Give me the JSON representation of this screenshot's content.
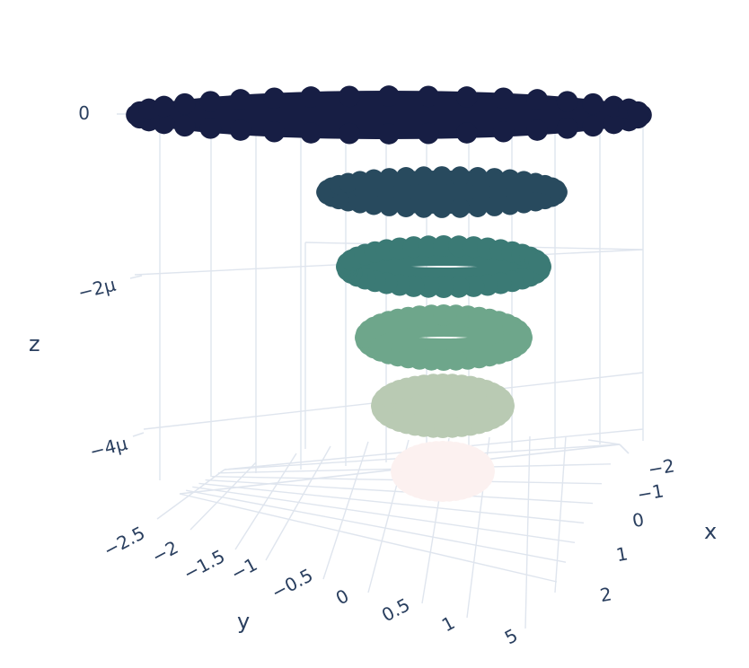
{
  "chart_data": {
    "type": "scatter3d",
    "title": "",
    "axes": {
      "x": {
        "title": "x",
        "ticks": [
          "−2",
          "−1",
          "0",
          "1",
          "2"
        ]
      },
      "y": {
        "title": "y",
        "ticks": [
          "−2.5",
          "−2",
          "−1.5",
          "−1",
          "−0.5",
          "0",
          "0.5",
          "1",
          "5"
        ]
      },
      "z": {
        "title": "z",
        "ticks": [
          "0",
          "−2μ",
          "−4μ"
        ]
      }
    },
    "grid": true,
    "legend": "none",
    "rings": [
      {
        "z": 0,
        "outer_radius": 2.6,
        "hole": false,
        "color": "#171e44"
      },
      {
        "z": -8e-07,
        "outer_radius": 1.3,
        "hole": false,
        "color": "#284a5e"
      },
      {
        "z": -1.6e-06,
        "outer_radius": 1.05,
        "hole": true,
        "color": "#3b7a75"
      },
      {
        "z": -2.4e-06,
        "outer_radius": 0.9,
        "hole": true,
        "color": "#6ea68b"
      },
      {
        "z": -3.2e-06,
        "outer_radius": 0.7,
        "hole": true,
        "color": "#b9cab3"
      },
      {
        "z": -4e-06,
        "outer_radius": 0.45,
        "hole": false,
        "color": "#fcf1f0"
      }
    ]
  }
}
